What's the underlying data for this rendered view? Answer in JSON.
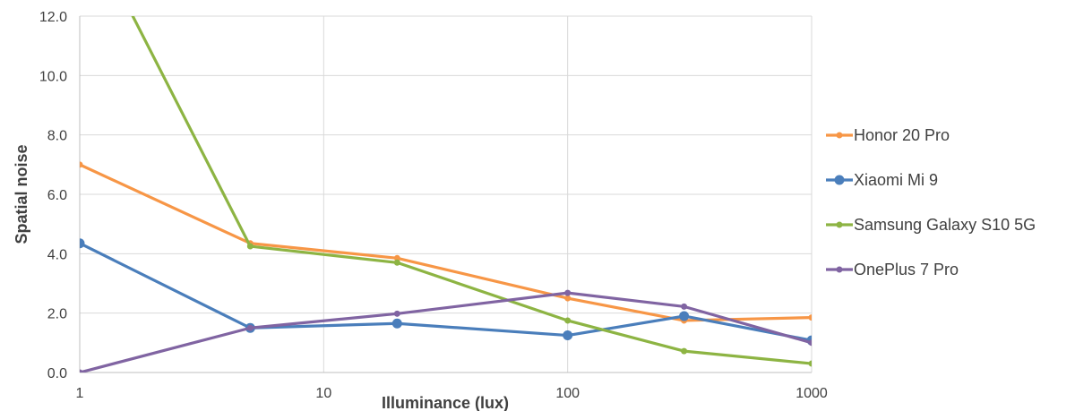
{
  "chart_data": {
    "type": "line",
    "xlabel": "Illuminance (lux)",
    "ylabel": "Spatial noise",
    "xscale": "log",
    "xlim": [
      1,
      1000
    ],
    "ylim": [
      0,
      12
    ],
    "xticks": [
      1,
      10,
      100,
      1000
    ],
    "xtick_labels": [
      "1",
      "10",
      "100",
      "1000"
    ],
    "yticks": [
      0,
      2,
      4,
      6,
      8,
      10,
      12
    ],
    "ytick_labels": [
      "0.0",
      "2.0",
      "4.0",
      "6.0",
      "8.0",
      "10.0",
      "12.0"
    ],
    "grid": true,
    "legend_position": "right",
    "series": [
      {
        "name": "Honor 20 Pro",
        "color": "#F79646",
        "marker": "small",
        "points": [
          [
            1,
            7.0
          ],
          [
            5,
            4.35
          ],
          [
            20,
            3.85
          ],
          [
            100,
            2.5
          ],
          [
            300,
            1.75
          ],
          [
            1000,
            1.85
          ]
        ]
      },
      {
        "name": "Xiaomi Mi 9",
        "color": "#4A7EBB",
        "marker": "large",
        "points": [
          [
            1,
            4.35
          ],
          [
            5,
            1.5
          ],
          [
            20,
            1.65
          ],
          [
            100,
            1.25
          ],
          [
            300,
            1.9
          ],
          [
            1000,
            1.08
          ]
        ]
      },
      {
        "name": "Samsung Galaxy S10 5G",
        "color": "#8DB443",
        "marker": "small",
        "points": [
          [
            1,
            15.5
          ],
          [
            5,
            4.25
          ],
          [
            20,
            3.7
          ],
          [
            100,
            1.75
          ],
          [
            300,
            0.72
          ],
          [
            1000,
            0.3
          ]
        ]
      },
      {
        "name": "OnePlus 7 Pro",
        "color": "#8064A2",
        "marker": "small",
        "points": [
          [
            1,
            0.0
          ],
          [
            5,
            1.5
          ],
          [
            20,
            1.98
          ],
          [
            100,
            2.68
          ],
          [
            300,
            2.22
          ],
          [
            1000,
            1.0
          ]
        ]
      }
    ]
  }
}
